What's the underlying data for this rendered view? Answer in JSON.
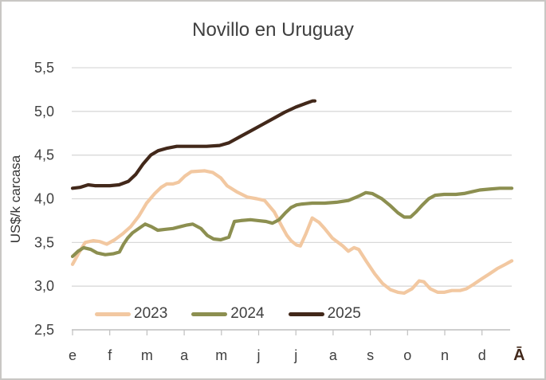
{
  "title": "Novillo en Uruguay",
  "y_axis_title": "US$/k carcasa",
  "colors": {
    "title_text": "#3f3f3f",
    "axis_text": "#404040",
    "gridline": "#d9d9d9",
    "axis_line": "#bfbfbf",
    "accent_brown": "#42281a",
    "series_2023": "#f2c8a1",
    "series_2024": "#8c8f50",
    "series_2025": "#42281a"
  },
  "legend": {
    "items": [
      "2023",
      "2024",
      "2025"
    ]
  },
  "chart_data": {
    "type": "line",
    "title": "Novillo en Uruguay",
    "xlabel": "",
    "ylabel": "US$/k carcasa",
    "x_labels": [
      "e",
      "f",
      "m",
      "a",
      "m",
      "j",
      "j",
      "a",
      "s",
      "o",
      "n",
      "d",
      "Ā"
    ],
    "y_ticks": [
      "5,5",
      "5,0",
      "4,5",
      "4,0",
      "3,5",
      "3,0",
      "2,5"
    ],
    "y_tick_values": [
      5.5,
      5.0,
      4.5,
      4.0,
      3.5,
      3.0,
      2.5
    ],
    "ylim": [
      2.5,
      5.5
    ],
    "xlim_months": [
      0,
      12
    ],
    "grid": "horizontal",
    "legend_position": "bottom-inside",
    "units": "US$/k carcasa",
    "series": [
      {
        "name": "2023",
        "color": "#f2c8a1",
        "points": [
          [
            0,
            3.25
          ],
          [
            0.17,
            3.38
          ],
          [
            0.34,
            3.5
          ],
          [
            0.56,
            3.52
          ],
          [
            0.73,
            3.51
          ],
          [
            0.92,
            3.48
          ],
          [
            1.13,
            3.53
          ],
          [
            1.35,
            3.6
          ],
          [
            1.56,
            3.68
          ],
          [
            1.78,
            3.8
          ],
          [
            1.99,
            3.95
          ],
          [
            2.21,
            4.06
          ],
          [
            2.38,
            4.13
          ],
          [
            2.53,
            4.17
          ],
          [
            2.7,
            4.17
          ],
          [
            2.85,
            4.19
          ],
          [
            3.02,
            4.26
          ],
          [
            3.19,
            4.31
          ],
          [
            3.55,
            4.32
          ],
          [
            3.77,
            4.3
          ],
          [
            3.98,
            4.24
          ],
          [
            4.15,
            4.15
          ],
          [
            4.41,
            4.08
          ],
          [
            4.69,
            4.02
          ],
          [
            4.95,
            4.0
          ],
          [
            5.16,
            3.98
          ],
          [
            5.42,
            3.85
          ],
          [
            5.63,
            3.68
          ],
          [
            5.76,
            3.58
          ],
          [
            5.87,
            3.52
          ],
          [
            6.02,
            3.47
          ],
          [
            6.12,
            3.46
          ],
          [
            6.27,
            3.6
          ],
          [
            6.44,
            3.78
          ],
          [
            6.62,
            3.73
          ],
          [
            6.77,
            3.66
          ],
          [
            6.98,
            3.55
          ],
          [
            7.26,
            3.46
          ],
          [
            7.41,
            3.4
          ],
          [
            7.56,
            3.44
          ],
          [
            7.69,
            3.42
          ],
          [
            7.9,
            3.28
          ],
          [
            8.12,
            3.14
          ],
          [
            8.33,
            3.03
          ],
          [
            8.54,
            2.96
          ],
          [
            8.74,
            2.93
          ],
          [
            8.91,
            2.92
          ],
          [
            9.12,
            2.97
          ],
          [
            9.31,
            3.06
          ],
          [
            9.44,
            3.05
          ],
          [
            9.61,
            2.97
          ],
          [
            9.81,
            2.93
          ],
          [
            9.98,
            2.93
          ],
          [
            10.19,
            2.95
          ],
          [
            10.41,
            2.95
          ],
          [
            10.58,
            2.97
          ],
          [
            10.77,
            3.02
          ],
          [
            10.98,
            3.08
          ],
          [
            11.2,
            3.14
          ],
          [
            11.41,
            3.2
          ],
          [
            11.63,
            3.25
          ],
          [
            11.8,
            3.29
          ]
        ]
      },
      {
        "name": "2024",
        "color": "#8c8f50",
        "points": [
          [
            0,
            3.34
          ],
          [
            0.15,
            3.4
          ],
          [
            0.3,
            3.44
          ],
          [
            0.49,
            3.42
          ],
          [
            0.66,
            3.38
          ],
          [
            0.88,
            3.36
          ],
          [
            1.09,
            3.37
          ],
          [
            1.26,
            3.39
          ],
          [
            1.37,
            3.48
          ],
          [
            1.48,
            3.55
          ],
          [
            1.61,
            3.61
          ],
          [
            1.78,
            3.66
          ],
          [
            1.95,
            3.71
          ],
          [
            2.12,
            3.68
          ],
          [
            2.29,
            3.64
          ],
          [
            2.48,
            3.65
          ],
          [
            2.7,
            3.66
          ],
          [
            2.89,
            3.68
          ],
          [
            3.08,
            3.7
          ],
          [
            3.23,
            3.71
          ],
          [
            3.45,
            3.66
          ],
          [
            3.62,
            3.58
          ],
          [
            3.79,
            3.54
          ],
          [
            3.98,
            3.53
          ],
          [
            4.2,
            3.56
          ],
          [
            4.35,
            3.74
          ],
          [
            4.52,
            3.75
          ],
          [
            4.78,
            3.76
          ],
          [
            4.99,
            3.75
          ],
          [
            5.2,
            3.74
          ],
          [
            5.37,
            3.72
          ],
          [
            5.55,
            3.76
          ],
          [
            5.72,
            3.84
          ],
          [
            5.87,
            3.9
          ],
          [
            6.02,
            3.93
          ],
          [
            6.17,
            3.94
          ],
          [
            6.44,
            3.95
          ],
          [
            6.77,
            3.95
          ],
          [
            7.09,
            3.96
          ],
          [
            7.41,
            3.98
          ],
          [
            7.69,
            4.03
          ],
          [
            7.88,
            4.07
          ],
          [
            8.05,
            4.06
          ],
          [
            8.31,
            4.0
          ],
          [
            8.54,
            3.92
          ],
          [
            8.74,
            3.84
          ],
          [
            8.91,
            3.79
          ],
          [
            9.08,
            3.79
          ],
          [
            9.23,
            3.85
          ],
          [
            9.4,
            3.93
          ],
          [
            9.57,
            4.0
          ],
          [
            9.74,
            4.04
          ],
          [
            9.98,
            4.05
          ],
          [
            10.3,
            4.05
          ],
          [
            10.52,
            4.06
          ],
          [
            10.73,
            4.08
          ],
          [
            10.94,
            4.1
          ],
          [
            11.2,
            4.11
          ],
          [
            11.48,
            4.12
          ],
          [
            11.8,
            4.12
          ]
        ]
      },
      {
        "name": "2025",
        "color": "#42281a",
        "points": [
          [
            0,
            4.12
          ],
          [
            0.2,
            4.13
          ],
          [
            0.42,
            4.16
          ],
          [
            0.6,
            4.15
          ],
          [
            1.0,
            4.15
          ],
          [
            1.25,
            4.16
          ],
          [
            1.5,
            4.2
          ],
          [
            1.7,
            4.28
          ],
          [
            1.9,
            4.4
          ],
          [
            2.1,
            4.5
          ],
          [
            2.3,
            4.55
          ],
          [
            2.55,
            4.58
          ],
          [
            2.8,
            4.6
          ],
          [
            3.6,
            4.6
          ],
          [
            3.95,
            4.61
          ],
          [
            4.2,
            4.64
          ],
          [
            4.5,
            4.71
          ],
          [
            4.8,
            4.78
          ],
          [
            5.1,
            4.85
          ],
          [
            5.4,
            4.92
          ],
          [
            5.7,
            4.99
          ],
          [
            6.0,
            5.05
          ],
          [
            6.25,
            5.09
          ],
          [
            6.45,
            5.12
          ],
          [
            6.51,
            5.12
          ]
        ]
      }
    ]
  }
}
